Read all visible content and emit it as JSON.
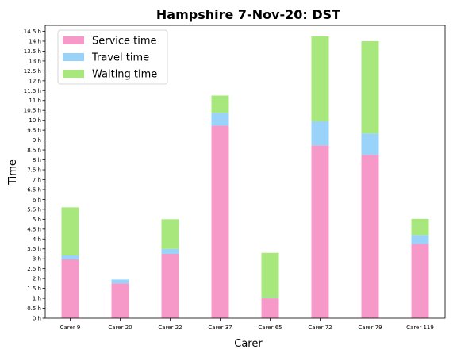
{
  "chart_data": {
    "type": "bar",
    "stacked": true,
    "title": "Hampshire 7-Nov-20: DST",
    "xlabel": "Carer",
    "ylabel": "Time",
    "ylim": [
      0,
      14.8
    ],
    "y_tick_step": 0.5,
    "y_tick_suffix": " h",
    "categories": [
      "Carer 9",
      "Carer 20",
      "Carer 22",
      "Carer 37",
      "Carer 65",
      "Carer 72",
      "Carer 79",
      "Carer 119"
    ],
    "series": [
      {
        "name": "Service time",
        "color": "#f799c8",
        "values": [
          2.97,
          1.75,
          3.25,
          9.73,
          1.0,
          8.73,
          8.25,
          3.75
        ]
      },
      {
        "name": "Travel time",
        "color": "#99d3f9",
        "values": [
          0.2,
          0.2,
          0.25,
          0.65,
          0.02,
          1.22,
          1.08,
          0.45
        ]
      },
      {
        "name": "Waiting time",
        "color": "#a7e77c",
        "values": [
          2.43,
          0.0,
          1.5,
          0.87,
          2.28,
          4.3,
          4.67,
          0.82
        ]
      }
    ],
    "legend_position": "top-left",
    "grid": false
  }
}
